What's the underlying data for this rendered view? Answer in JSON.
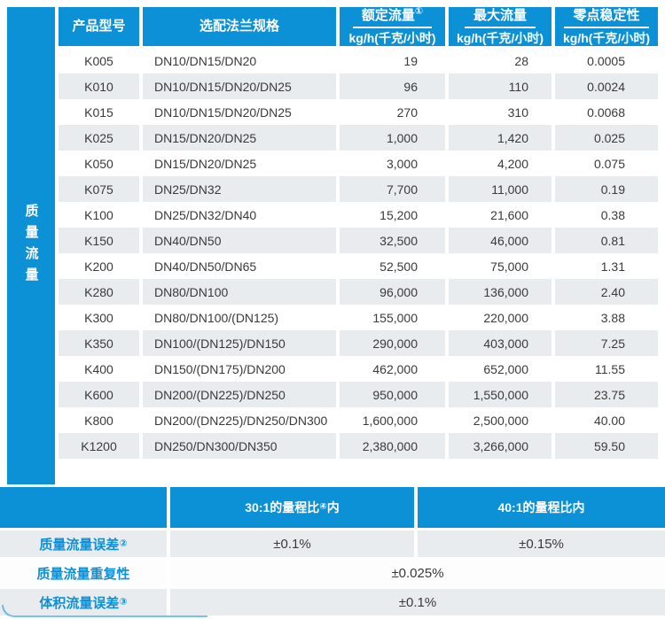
{
  "colors": {
    "blue": "#0c90d6",
    "stripe": "#e8ecef"
  },
  "sidebar": {
    "label": "质量流量"
  },
  "table": {
    "headers": {
      "product": "产品型号",
      "flange": "选配法兰规格",
      "rated": {
        "title": "额定流量",
        "sup": "①",
        "unit": "kg/h(千克/小时)"
      },
      "max": {
        "title": "最大流量",
        "sup": "",
        "unit": "kg/h(千克/小时)"
      },
      "zero": {
        "title": "零点稳定性",
        "sup": "",
        "unit": "kg/h(千克/小时)"
      }
    },
    "rows": [
      {
        "model": "K005",
        "flange": "DN10/DN15/DN20",
        "rated": "19",
        "max": "28",
        "zero": "0.0005"
      },
      {
        "model": "K010",
        "flange": "DN10/DN15/DN20/DN25",
        "rated": "96",
        "max": "110",
        "zero": "0.0024"
      },
      {
        "model": "K015",
        "flange": "DN10/DN15/DN20/DN25",
        "rated": "270",
        "max": "310",
        "zero": "0.0068"
      },
      {
        "model": "K025",
        "flange": "DN15/DN20/DN25",
        "rated": "1,000",
        "max": "1,420",
        "zero": "0.025"
      },
      {
        "model": "K050",
        "flange": "DN15/DN20/DN25",
        "rated": "3,000",
        "max": "4,200",
        "zero": "0.075"
      },
      {
        "model": "K075",
        "flange": "DN25/DN32",
        "rated": "7,700",
        "max": "11,000",
        "zero": "0.19"
      },
      {
        "model": "K100",
        "flange": "DN25/DN32/DN40",
        "rated": "15,200",
        "max": "21,600",
        "zero": "0.38"
      },
      {
        "model": "K150",
        "flange": "DN40/DN50",
        "rated": "32,500",
        "max": "46,000",
        "zero": "0.81"
      },
      {
        "model": "K200",
        "flange": "DN40/DN50/DN65",
        "rated": "52,500",
        "max": "75,000",
        "zero": "1.31"
      },
      {
        "model": "K280",
        "flange": "DN80/DN100",
        "rated": "96,000",
        "max": "136,000",
        "zero": "2.40"
      },
      {
        "model": "K300",
        "flange": "DN80/DN100/(DN125)",
        "rated": "155,000",
        "max": "220,000",
        "zero": "3.88"
      },
      {
        "model": "K350",
        "flange": "DN100/(DN125)/DN150",
        "rated": "290,000",
        "max": "403,000",
        "zero": "7.25"
      },
      {
        "model": "K400",
        "flange": "DN150/(DN175)/DN200",
        "rated": "462,000",
        "max": "652,000",
        "zero": "11.55"
      },
      {
        "model": "K600",
        "flange": "DN200/(DN225)/DN250",
        "rated": "950,000",
        "max": "1,550,000",
        "zero": "23.75"
      },
      {
        "model": "K800",
        "flange": "DN200/(DN225)/DN250/DN300",
        "rated": "1,600,000",
        "max": "2,500,000",
        "zero": "40.00"
      },
      {
        "model": "K1200",
        "flange": "DN250/DN300/DN350",
        "rated": "2,380,000",
        "max": "3,266,000",
        "zero": "59.50"
      }
    ]
  },
  "bottom": {
    "range_a": {
      "pre": "30:1的量程比",
      "sup": "④",
      "post": "内"
    },
    "range_b": {
      "pre": "40:1的量程比内",
      "sup": "",
      "post": ""
    },
    "rows": [
      {
        "label": "质量流量误差",
        "sup": "②",
        "a": "±0.1%",
        "b": "±0.15%"
      },
      {
        "label": "质量流量重复性",
        "sup": "",
        "value": "±0.025%"
      },
      {
        "label": "体积流量误差",
        "sup": "③",
        "value": "±0.1%"
      }
    ]
  }
}
